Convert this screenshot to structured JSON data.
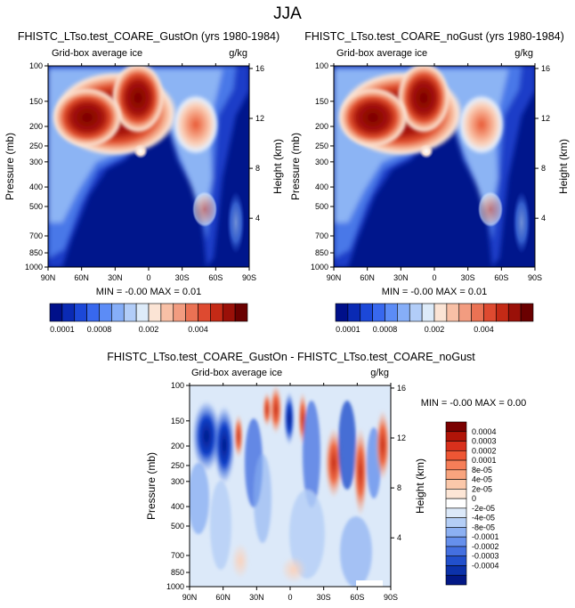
{
  "figure": {
    "title": "JJA"
  },
  "chart_data": [
    {
      "type": "heatmap",
      "title": "FHISTC_LTso.test_COARE_GustOn (yrs 1980-1984)",
      "subtitle_left": "Grid-box average ice",
      "subtitle_right": "g/kg",
      "ylabel": "Pressure (mb)",
      "ylabel_right": "Height (km)",
      "x_ticks": [
        "90N",
        "60N",
        "30N",
        "0",
        "30S",
        "60S",
        "90S"
      ],
      "y_ticks": [
        "100",
        "150",
        "200",
        "250",
        "300",
        "400",
        "500",
        "700",
        "850",
        "1000"
      ],
      "height_ticks": [
        "16",
        "12",
        "8",
        "4"
      ],
      "stats": "MIN = -0.00  MAX =  0.01"
    },
    {
      "type": "heatmap",
      "title": "FHISTC_LTso.test_COARE_noGust (yrs 1980-1984)",
      "subtitle_left": "Grid-box average ice",
      "subtitle_right": "g/kg",
      "ylabel": "Pressure (mb)",
      "ylabel_right": "Height (km)",
      "x_ticks": [
        "90N",
        "60N",
        "30N",
        "0",
        "30S",
        "60S",
        "90S"
      ],
      "y_ticks": [
        "100",
        "150",
        "200",
        "250",
        "300",
        "400",
        "500",
        "700",
        "850",
        "1000"
      ],
      "height_ticks": [
        "16",
        "12",
        "8",
        "4"
      ],
      "stats": "MIN = -0.00  MAX =  0.01"
    },
    {
      "type": "heatmap",
      "title": "FHISTC_LTso.test_COARE_GustOn - FHISTC_LTso.test_COARE_noGust",
      "subtitle_left": "Grid-box average ice",
      "subtitle_right": "g/kg",
      "ylabel": "Pressure (mb)",
      "ylabel_right": "Height (km)",
      "x_ticks": [
        "90N",
        "60N",
        "30N",
        "0",
        "30S",
        "60S",
        "90S"
      ],
      "y_ticks": [
        "100",
        "150",
        "200",
        "250",
        "300",
        "400",
        "500",
        "700",
        "850",
        "1000"
      ],
      "height_ticks": [
        "16",
        "12",
        "8",
        "4"
      ],
      "stats": "MIN = -0.00  MAX =  0.00"
    }
  ],
  "colorbar_top": {
    "colors": [
      "#00108a",
      "#0a2ab4",
      "#1c48d8",
      "#3868ee",
      "#5c8cf6",
      "#86aef8",
      "#b2cdf8",
      "#ddebf9",
      "#fbe4d5",
      "#f8c0a6",
      "#f29c80",
      "#ea7254",
      "#de4a30",
      "#c42a16",
      "#9a1008",
      "#6a0000"
    ],
    "labels": [
      "0.0001",
      "0.0008",
      "0.002",
      "0.004"
    ]
  },
  "colorbar_diff": {
    "colors": [
      "#7a0000",
      "#b01408",
      "#d8301c",
      "#ee5634",
      "#f67e58",
      "#f8a47e",
      "#fbc8aa",
      "#fde6d6",
      "#ffffff",
      "#dce9f9",
      "#b4cef6",
      "#8cb0f2",
      "#6690ec",
      "#4470e0",
      "#2250cc",
      "#0c32aa",
      "#021886"
    ],
    "labels": [
      "0.0004",
      "0.0003",
      "0.0002",
      "0.0001",
      "8e-05",
      "4e-05",
      "2e-05",
      "0",
      "-2e-05",
      "-4e-05",
      "-8e-05",
      "-0.0001",
      "-0.0002",
      "-0.0003",
      "-0.0004"
    ]
  }
}
